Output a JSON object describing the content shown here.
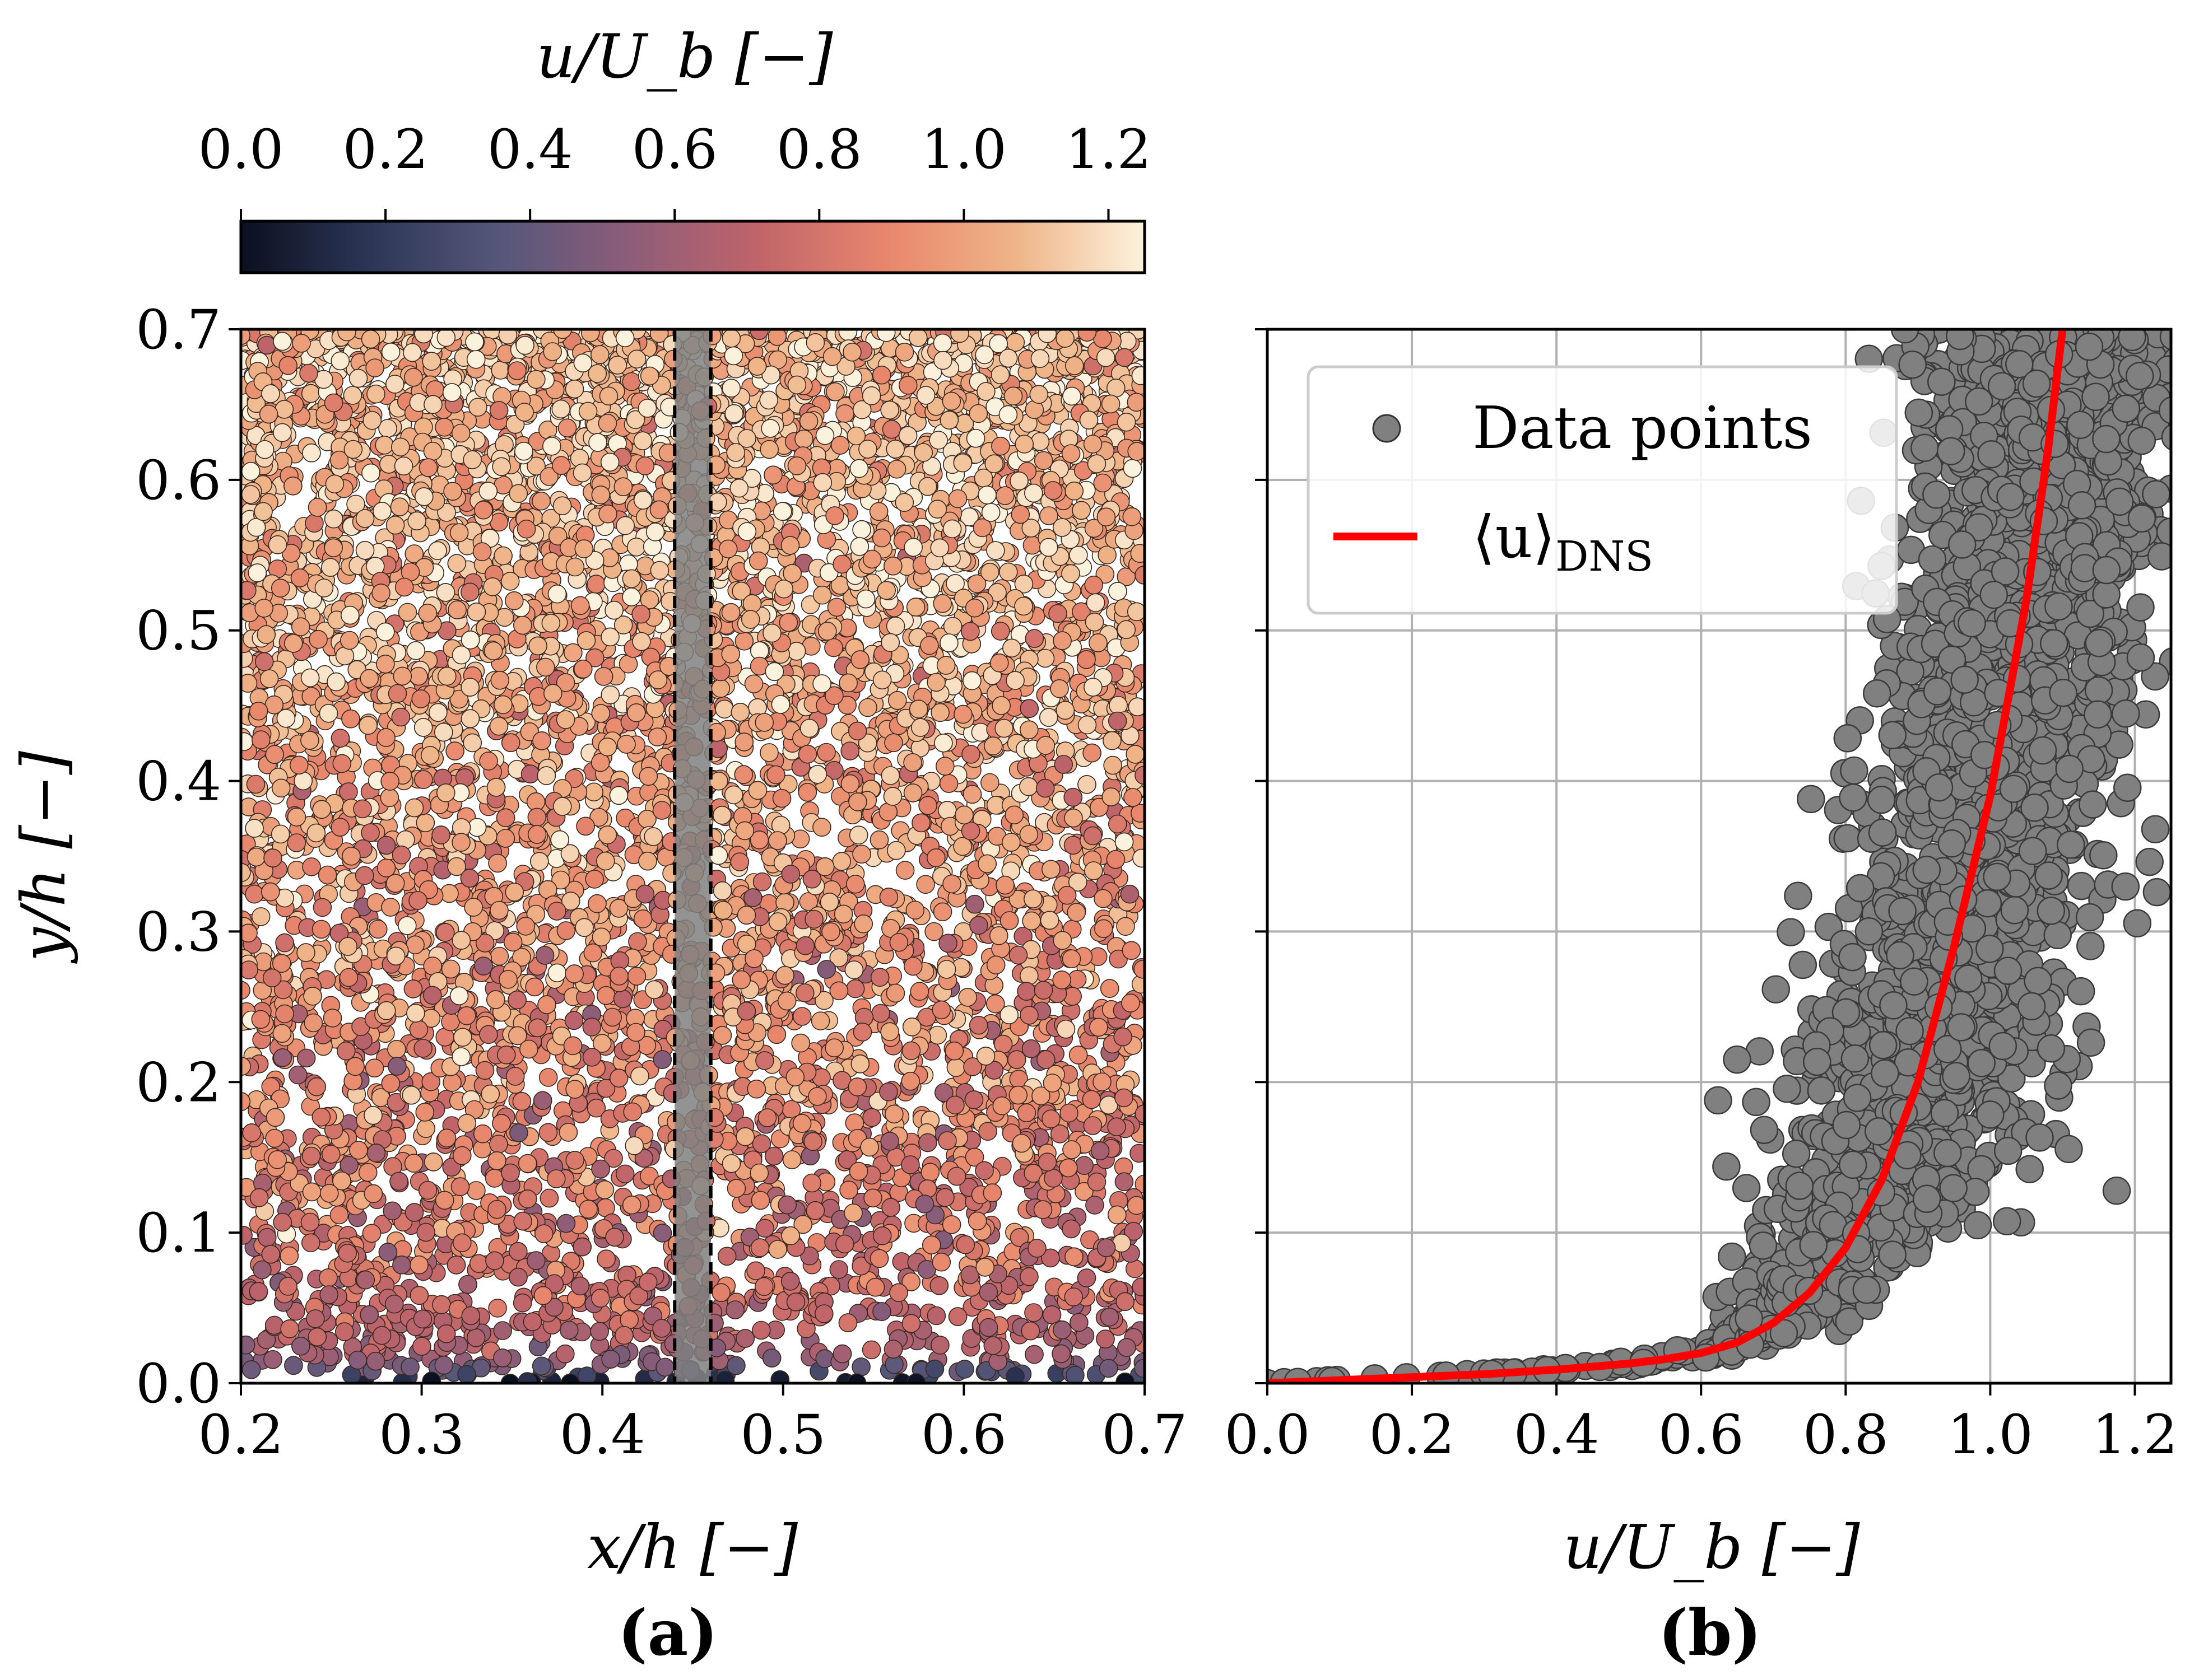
{
  "chart_data": [
    {
      "id": "a",
      "type": "scatter",
      "panel_label": "(a)",
      "xlabel": "x/h [−]",
      "ylabel": "y/h [−]",
      "xlim": [
        0.2,
        0.7
      ],
      "ylim": [
        0.0,
        0.7
      ],
      "x_ticks": [
        0.2,
        0.3,
        0.4,
        0.5,
        0.6,
        0.7
      ],
      "x_tick_labels": [
        "0.2",
        "0.3",
        "0.4",
        "0.5",
        "0.6",
        "0.7"
      ],
      "y_ticks": [
        0.0,
        0.1,
        0.2,
        0.3,
        0.4,
        0.5,
        0.6,
        0.7
      ],
      "y_tick_labels": [
        "0.0",
        "0.1",
        "0.2",
        "0.3",
        "0.4",
        "0.5",
        "0.6",
        "0.7"
      ],
      "color_by": "u/U_b",
      "highlight_band": {
        "x_range": [
          0.44,
          0.46
        ],
        "color": "#808080"
      },
      "colorbar": {
        "label": "u/U_b [−]",
        "range": [
          0.0,
          1.25
        ],
        "ticks": [
          0.0,
          0.2,
          0.4,
          0.6,
          0.8,
          1.0,
          1.2
        ],
        "tick_labels": [
          "0.0",
          "0.2",
          "0.4",
          "0.6",
          "0.8",
          "1.0",
          "1.2"
        ],
        "colormap": [
          "#0b1020",
          "#2c3656",
          "#56577a",
          "#8c5d79",
          "#c0646a",
          "#e8866c",
          "#efb487",
          "#fbf2dd"
        ]
      }
    },
    {
      "id": "b",
      "type": "scatter",
      "panel_label": "(b)",
      "xlabel": "u/U_b [−]",
      "ylabel": "",
      "xlim": [
        0.0,
        1.25
      ],
      "ylim": [
        0.0,
        0.7
      ],
      "x_ticks": [
        0.0,
        0.2,
        0.4,
        0.6,
        0.8,
        1.0,
        1.2
      ],
      "x_tick_labels": [
        "0.0",
        "0.2",
        "0.4",
        "0.6",
        "0.8",
        "1.0",
        "1.2"
      ],
      "y_ticks": [
        0.0,
        0.1,
        0.2,
        0.3,
        0.4,
        0.5,
        0.6,
        0.7
      ],
      "grid": true,
      "legend": {
        "position": "top-left",
        "entries": [
          {
            "label": "Data points",
            "marker": "circle",
            "color": "#808080"
          },
          {
            "label": "⟨u⟩",
            "subscript": "DNS",
            "marker": "line",
            "color": "#ff0000"
          }
        ]
      },
      "series": [
        {
          "name": "Data points",
          "color": "#808080",
          "style": "markers"
        },
        {
          "name": "⟨u⟩ DNS",
          "color": "#ff0000",
          "style": "line",
          "x": [
            0.0,
            0.1,
            0.2,
            0.3,
            0.4,
            0.5,
            0.55,
            0.6,
            0.65,
            0.7,
            0.75,
            0.8,
            0.85,
            0.9,
            0.95,
            1.0,
            1.05,
            1.08,
            1.1
          ],
          "y": [
            0.0,
            0.002,
            0.004,
            0.006,
            0.009,
            0.013,
            0.016,
            0.02,
            0.027,
            0.04,
            0.06,
            0.09,
            0.135,
            0.2,
            0.29,
            0.39,
            0.52,
            0.62,
            0.7
          ]
        }
      ]
    }
  ]
}
